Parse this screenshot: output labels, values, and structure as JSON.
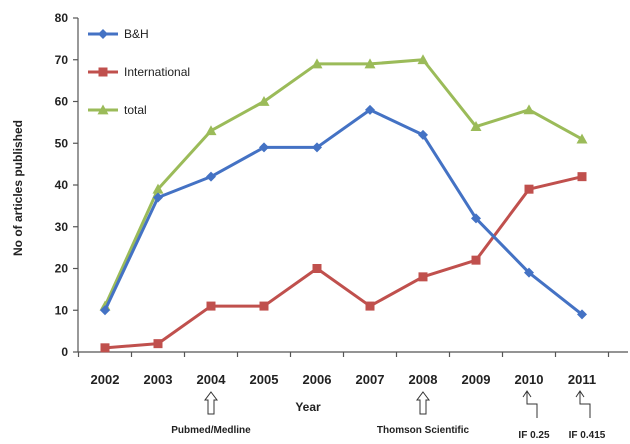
{
  "chart_data": {
    "type": "line",
    "title": "",
    "xlabel": "Year",
    "ylabel": "No of articles published",
    "categories": [
      "2002",
      "2003",
      "2004",
      "2005",
      "2006",
      "2007",
      "2008",
      "2009",
      "2010",
      "2011"
    ],
    "ylim": [
      0,
      80
    ],
    "yticks": [
      0,
      10,
      20,
      30,
      40,
      50,
      60,
      70,
      80
    ],
    "grid": false,
    "legend_position": "top-left",
    "series": [
      {
        "name": "B&H",
        "marker": "diamond",
        "color": "#4472C4",
        "values": [
          10,
          37,
          42,
          49,
          49,
          58,
          52,
          32,
          19,
          9
        ]
      },
      {
        "name": "International",
        "marker": "square",
        "color": "#C0504D",
        "values": [
          1,
          2,
          11,
          11,
          20,
          11,
          18,
          22,
          39,
          42
        ]
      },
      {
        "name": "total",
        "marker": "triangle",
        "color": "#9BBB59",
        "values": [
          11,
          39,
          53,
          60,
          69,
          69,
          70,
          54,
          58,
          51
        ]
      }
    ],
    "annotations": [
      {
        "label": "Pubmed/Medline",
        "category": "2004",
        "arrow": "up-hollow"
      },
      {
        "label": "Thomson Scientific",
        "category": "2008",
        "arrow": "up-hollow"
      },
      {
        "label": "IF 0.25",
        "category": "2010",
        "arrow": "corner"
      },
      {
        "label": "IF 0.415",
        "category": "2011",
        "arrow": "corner"
      }
    ]
  }
}
